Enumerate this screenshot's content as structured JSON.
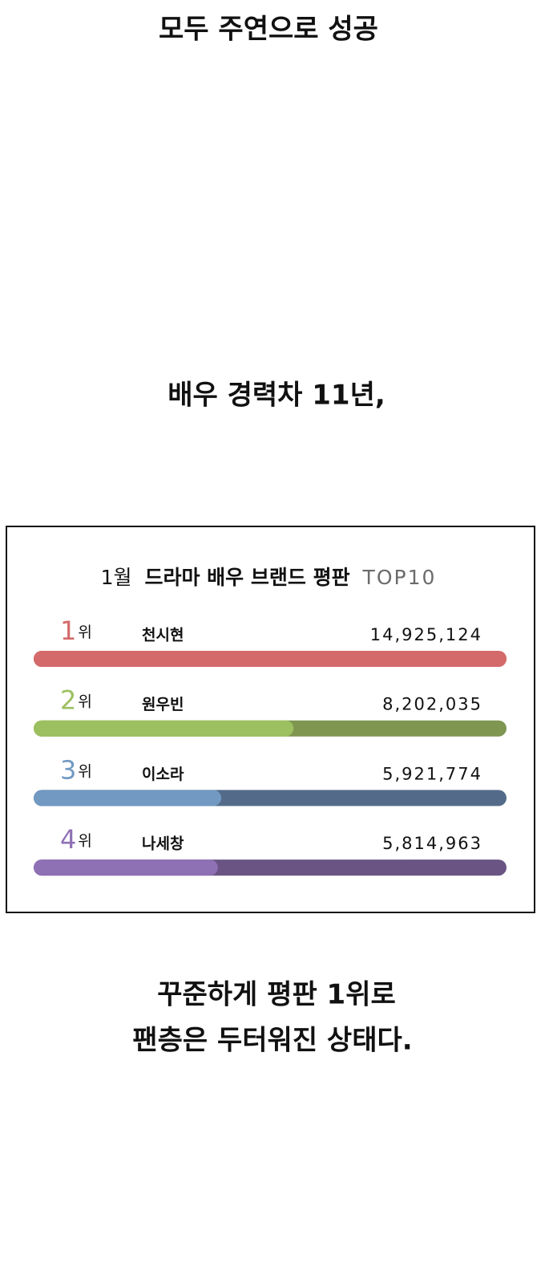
{
  "captions": {
    "top": "모두 주연으로 성공",
    "middle": "배우 경력차 11년,",
    "bottom": [
      "꾸준하게 평판 1위로",
      "팬층은 두터워진 상태다."
    ]
  },
  "chart_data": {
    "type": "bar",
    "orientation": "horizontal",
    "title": [
      "1월",
      "드라마 배우 브랜드 평판",
      "TOP10"
    ],
    "ranks": [
      "1",
      "2",
      "3",
      "4"
    ],
    "rank_suffix": "위",
    "categories": [
      "천시현",
      "원우빈",
      "이소라",
      "나세창"
    ],
    "values": [
      14925124,
      8202035,
      5921774,
      5814963
    ],
    "value_labels": [
      "14,925,124",
      "8,202,035",
      "5,921,774",
      "5,814,963"
    ],
    "colors": [
      "#d46a6a",
      "#9cbf5f",
      "#7199c2",
      "#8e70b4"
    ],
    "track_colors": [
      "#d46a6a",
      "#7e9650",
      "#536b89",
      "#6a5484"
    ]
  }
}
